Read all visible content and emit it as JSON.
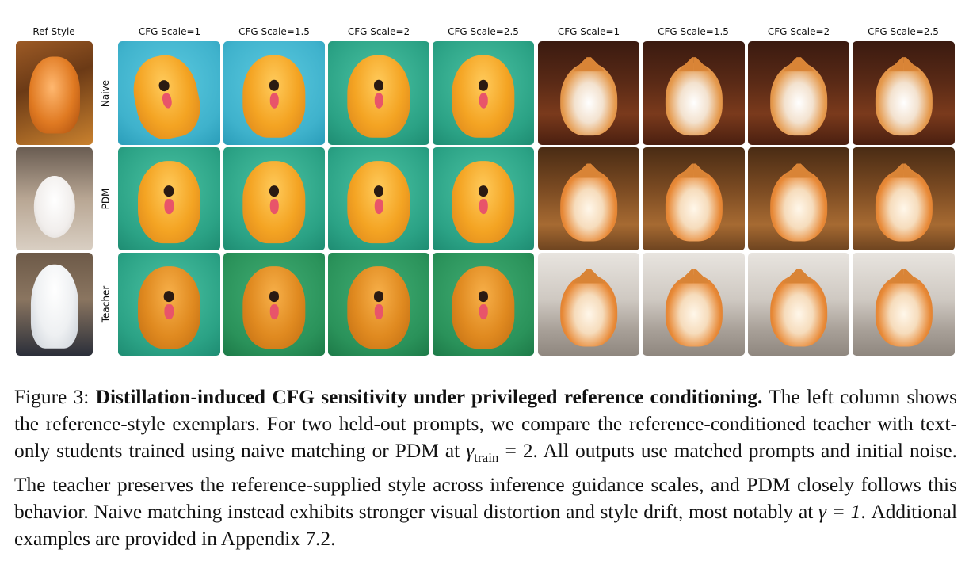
{
  "figure": {
    "ref_header": "Ref Style",
    "column_headers": [
      "CFG Scale=1",
      "CFG Scale=1.5",
      "CFG Scale=2",
      "CFG Scale=2.5",
      "CFG Scale=1",
      "CFG Scale=1.5",
      "CFG Scale=2",
      "CFG Scale=2.5"
    ],
    "row_labels": [
      "Naive",
      "PDM",
      "Teacher"
    ]
  },
  "caption": {
    "label": "Figure 3:",
    "title": "Distillation-induced CFG sensitivity under privileged reference conditioning.",
    "text_a": "The left column shows the reference-style exemplars. For two held-out prompts, we compare the reference-conditioned teacher with text-only students trained using naive matching or PDM at",
    "gamma_symbol": "γ",
    "gamma_sub": "train",
    "text_b": "= 2. All outputs use matched prompts and initial noise. The teacher preserves the reference-supplied style across inference guidance scales, and PDM closely follows this behavior. Naive matching instead exhibits stronger visual distortion and style drift, most notably at",
    "gamma_eq": "γ = 1",
    "text_c": ". Additional examples are provided in Appendix 7.2."
  }
}
